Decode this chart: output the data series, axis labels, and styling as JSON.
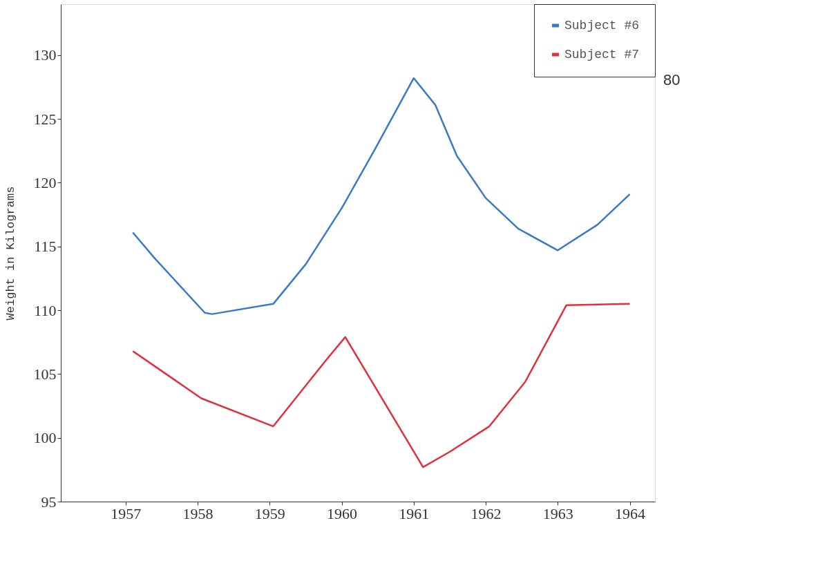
{
  "chart_data": {
    "type": "line",
    "ylabel": "Weight in Kilograms",
    "xlim": [
      1956.1,
      1964.35
    ],
    "ylim": [
      95,
      134
    ],
    "xticks": [
      1957,
      1958,
      1959,
      1960,
      1961,
      1962,
      1963,
      1964
    ],
    "yticks": [
      95,
      100,
      105,
      110,
      115,
      120,
      125,
      130
    ],
    "grid": false,
    "legend": "top right",
    "marker": "none",
    "line_style": "solid",
    "annotations": [
      "80"
    ],
    "series": [
      {
        "name": "Subject #6",
        "color": "#3a78c8",
        "x": [
          1957.1,
          1957.4,
          1958.1,
          1958.2,
          1959.05,
          1959.5,
          1960.0,
          1960.46,
          1961.0,
          1961.3,
          1961.6,
          1962.0,
          1962.45,
          1963.0,
          1963.55,
          1964.0
        ],
        "values": [
          116.1,
          114.1,
          109.8,
          109.7,
          110.5,
          113.6,
          118.0,
          122.6,
          128.2,
          126.1,
          122.1,
          118.8,
          116.4,
          114.7,
          116.7,
          119.1
        ]
      },
      {
        "name": "Subject #7",
        "color": "#e0303c",
        "x": [
          1957.1,
          1958.05,
          1959.05,
          1959.77,
          1960.05,
          1961.13,
          1961.5,
          1962.05,
          1962.55,
          1963.12,
          1964.0
        ],
        "values": [
          106.8,
          103.1,
          100.9,
          106.0,
          107.9,
          97.7,
          98.9,
          100.9,
          104.4,
          110.4,
          110.5
        ]
      }
    ]
  }
}
